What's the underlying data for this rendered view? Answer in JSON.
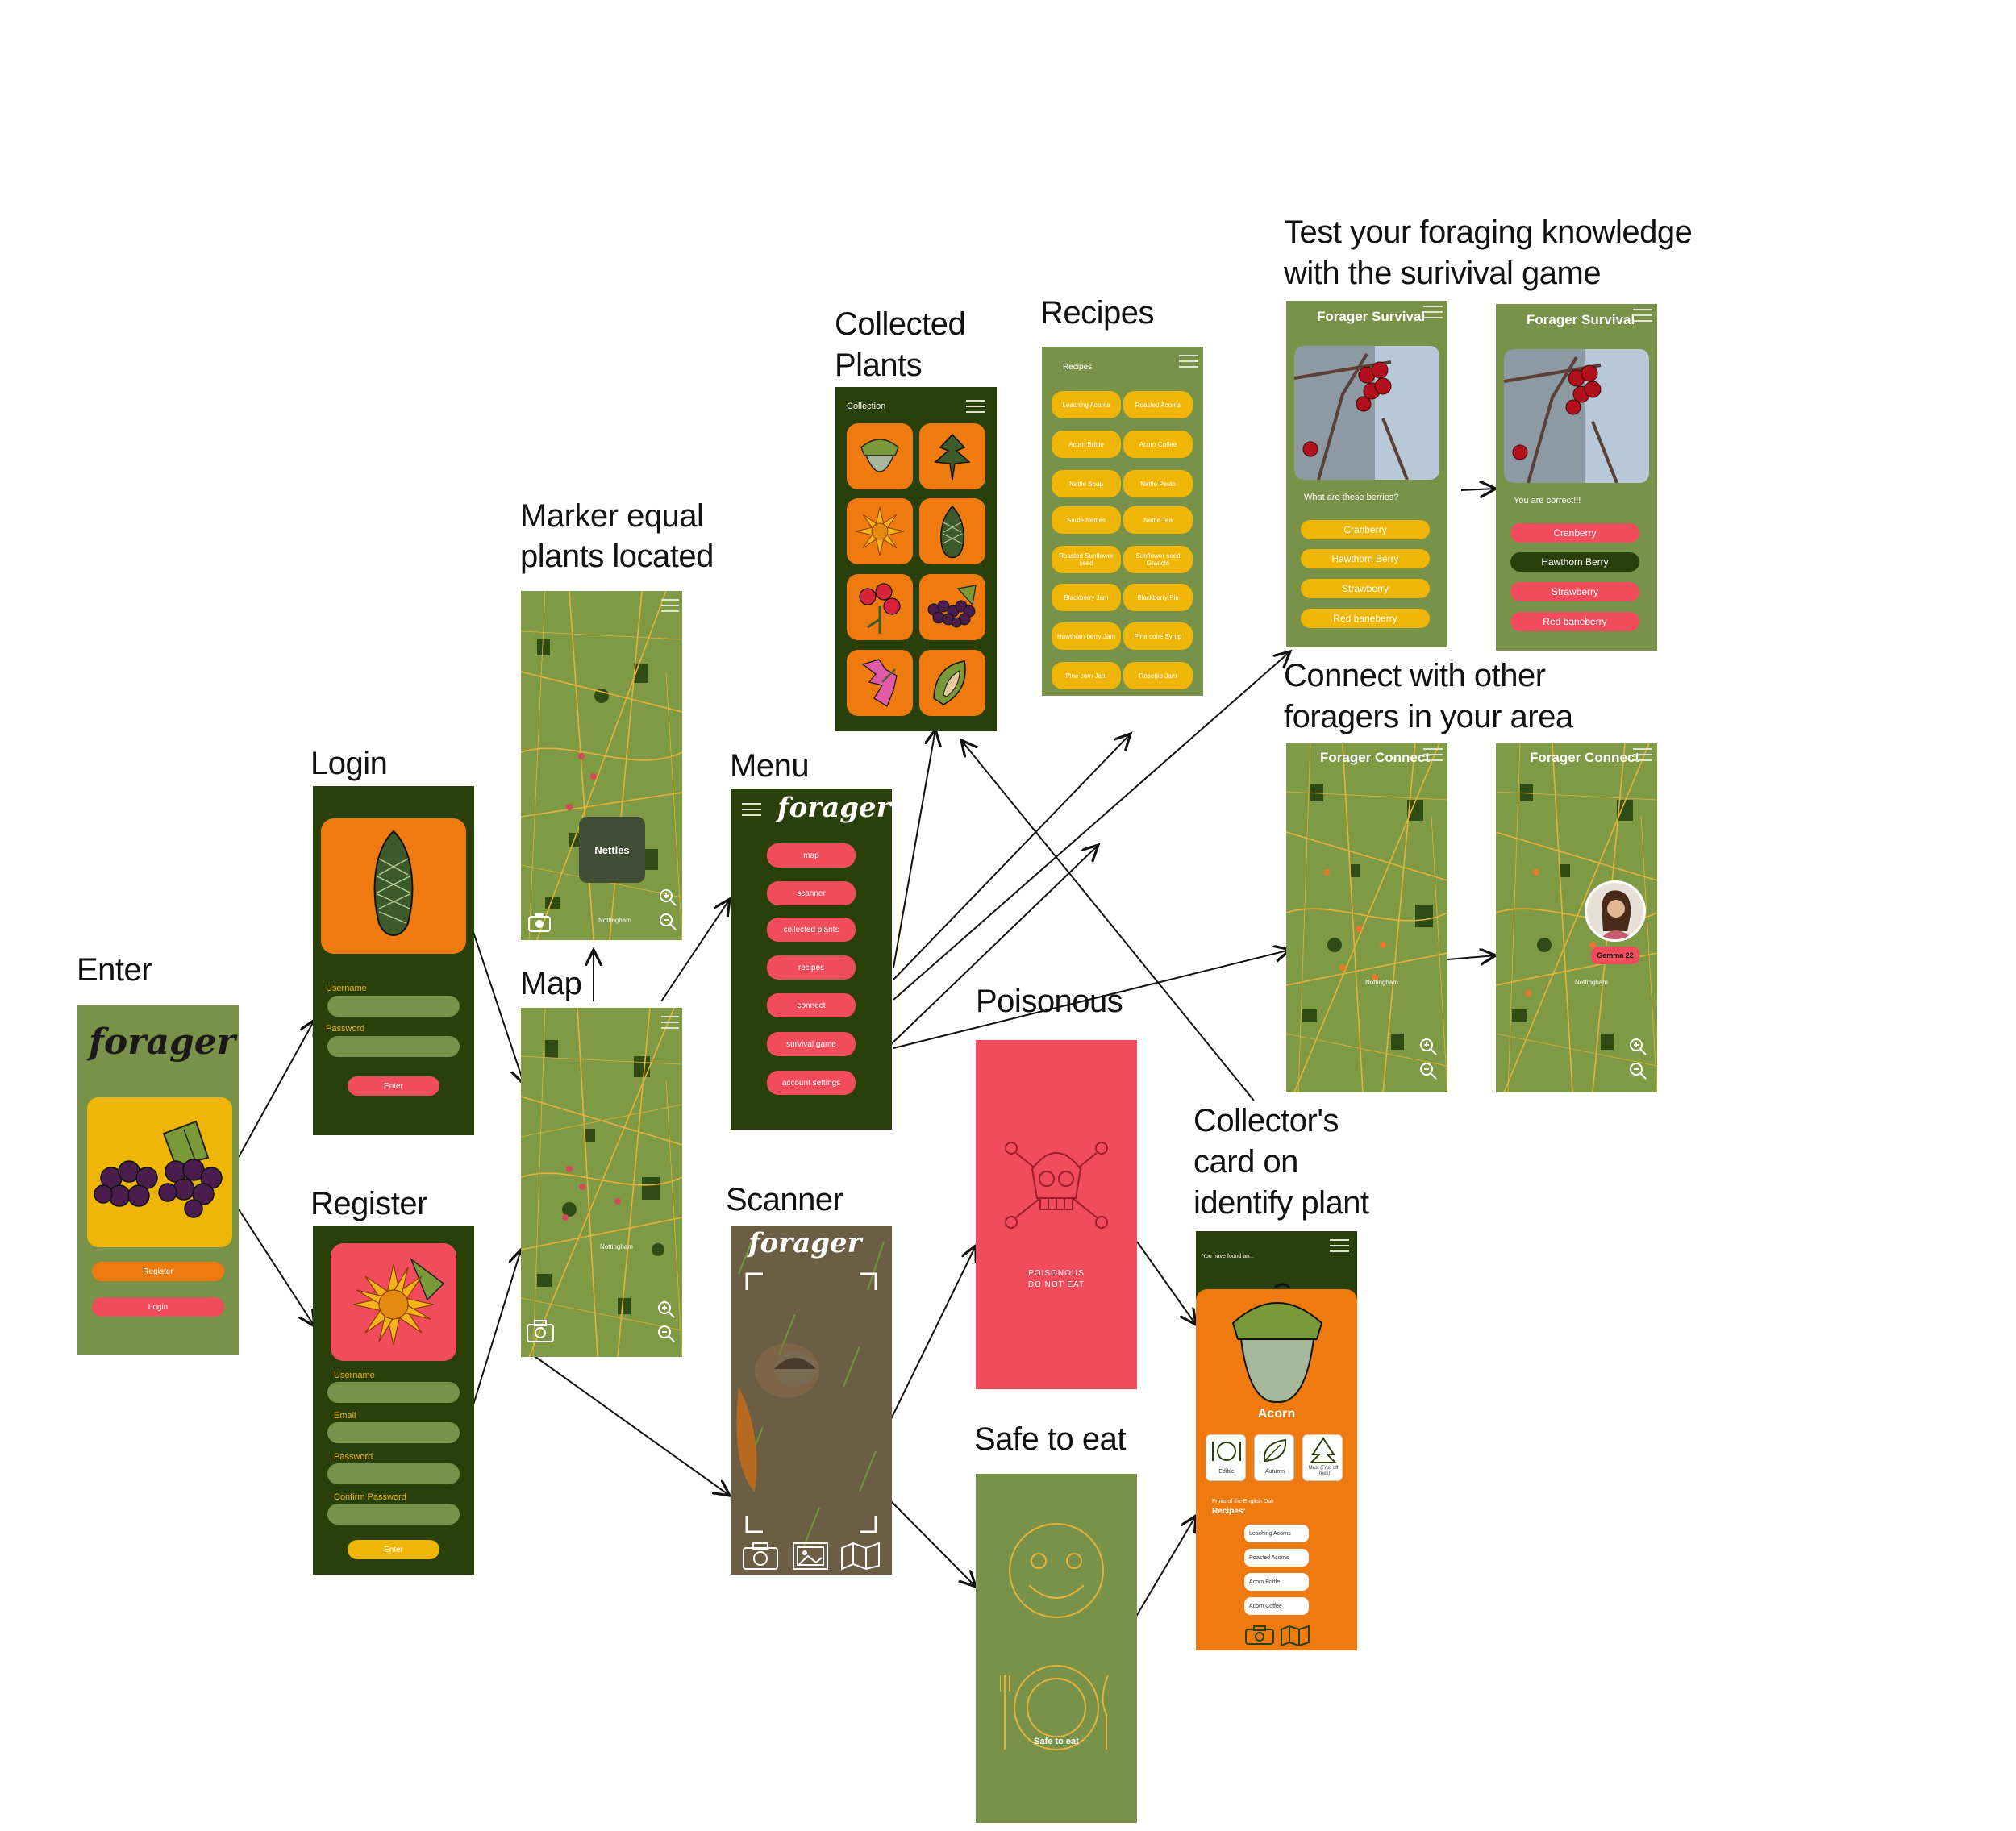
{
  "labels": {
    "enter": "Enter",
    "login": "Login",
    "register": "Register",
    "map": "Map",
    "marker_1": "Marker equal",
    "marker_2": "plants located",
    "menu": "Menu",
    "scanner": "Scanner",
    "collected_1": "Collected",
    "collected_2": "Plants",
    "recipes": "Recipes",
    "test_1": "Test your foraging knowledge",
    "test_2": "with the surivival game",
    "connect_1": "Connect with other",
    "connect_2": "foragers in your area",
    "poisonous": "Poisonous",
    "safe": "Safe to eat",
    "card_1": "Collector's",
    "card_2": "card on",
    "card_3": "identify plant"
  },
  "enter_screen": {
    "logo": "forager",
    "register": "Register",
    "login": "Login"
  },
  "login_screen": {
    "username": "Username",
    "password": "Password",
    "enter": "Enter"
  },
  "register_screen": {
    "username": "Username",
    "email": "Email",
    "password": "Password",
    "confirm": "Confirm Password",
    "enter": "Enter"
  },
  "marker_screen": {
    "popup": "Nettles",
    "city": "Nottingham"
  },
  "map_screen": {
    "city": "Nottingham"
  },
  "menu_screen": {
    "logo": "forager",
    "items": [
      "map",
      "scanner",
      "collected plants",
      "recipes",
      "connect",
      "survival game",
      "account settings"
    ]
  },
  "scanner_screen": {
    "logo": "forager"
  },
  "collection_screen": {
    "title": "Collection"
  },
  "recipes_screen": {
    "title": "Recipes",
    "items": [
      "Leaching Acorns",
      "Roasted Acorns",
      "Acorn Brittle",
      "Acorn Coffee",
      "Nettle Soup",
      "Nettle Pesto",
      "Sauté Nettles",
      "Nettle Tea",
      "Roasted Sunflower seed",
      "Sunflower seed Granola",
      "Blackberry Jam",
      "Blackberry Pie",
      "Hawthorn berry Jam",
      "Pine cone Syrup",
      "Pine corn Jam",
      "Rosehip Jam"
    ]
  },
  "survival_a": {
    "title": "Forager Survival",
    "question": "What are these berries?",
    "options": [
      "Cranberry",
      "Hawthorn Berry",
      "Strawberry",
      "Red baneberry"
    ]
  },
  "survival_b": {
    "title": "Forager Survival",
    "feedback": "You are correct!!!",
    "options": [
      "Cranberry",
      "Hawthorn Berry",
      "Strawberry",
      "Red baneberry"
    ]
  },
  "connect_a": {
    "title": "Forager Connect",
    "city": "Nottingham"
  },
  "connect_b": {
    "title": "Forager Connect",
    "user": "Gemma 22",
    "city": "Nottingham"
  },
  "poison_screen": {
    "line1": "POISONOUS",
    "line2": "DO NOT EAT"
  },
  "safe_screen": {
    "text": "Safe to eat"
  },
  "card_screen": {
    "found": "You have found an...",
    "name": "Acorn",
    "attrs": [
      "Edible",
      "Autumn",
      "Mast (Fruit off Trees)"
    ],
    "desc": "Fruits of the English Oak",
    "recipes_label": "Recipes:",
    "recipes": [
      "Leaching Acorns",
      "Roasted Acorns",
      "Acorn Brittle",
      "Acorn Coffee"
    ]
  },
  "colors": {
    "olive": "#79924a",
    "dark": "#2a400a",
    "orange": "#ef7a0f",
    "pink": "#f04c5c",
    "yellow": "#efb607"
  }
}
